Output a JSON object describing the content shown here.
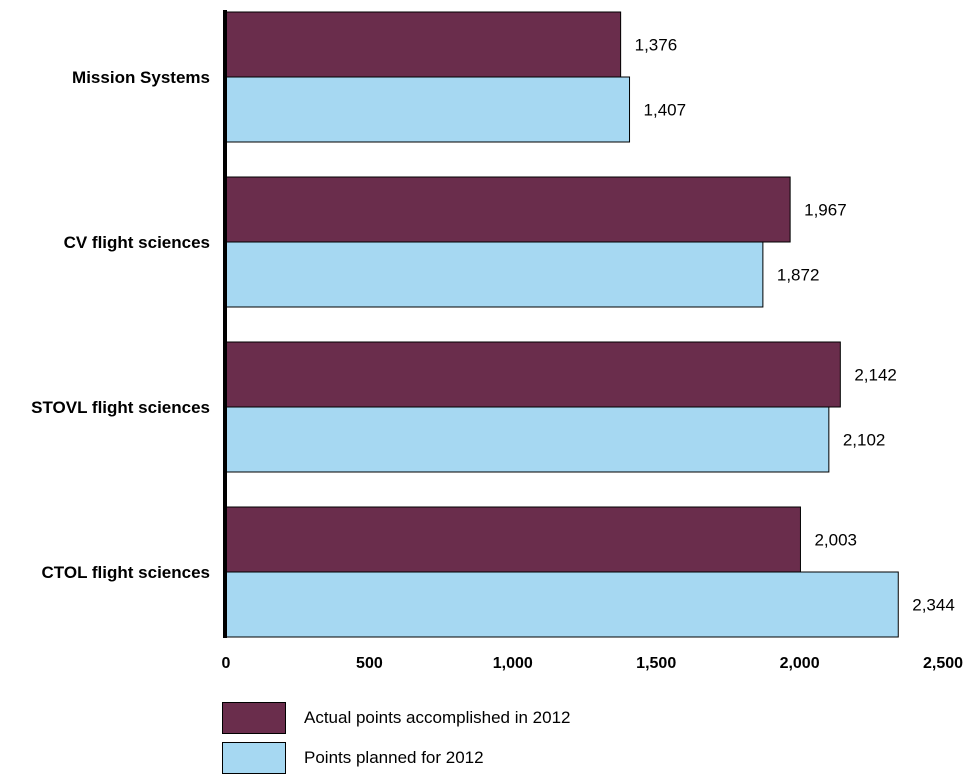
{
  "chart_data": {
    "type": "bar",
    "orientation": "horizontal",
    "categories": [
      "Mission Systems",
      "CV flight sciences",
      "STOVL flight sciences",
      "CTOL flight sciences"
    ],
    "series": [
      {
        "name": "Actual points accomplished in 2012",
        "color": "#6a2d4c",
        "values": [
          1376,
          1967,
          2142,
          2003
        ],
        "labels": [
          "1,376",
          "1,967",
          "2,142",
          "2,003"
        ]
      },
      {
        "name": "Points planned for 2012",
        "color": "#a6d8f2",
        "values": [
          1407,
          1872,
          2102,
          2344
        ],
        "labels": [
          "1,407",
          "1,872",
          "2,102",
          "2,344"
        ]
      }
    ],
    "xlim": [
      0,
      2500
    ],
    "xticks": [
      0,
      500,
      1000,
      1500,
      2000,
      2500
    ],
    "xtick_labels": [
      "0",
      "500",
      "1,000",
      "1,500",
      "2,000",
      "2,500"
    ],
    "grid": false,
    "legend_position": "bottom-left"
  }
}
